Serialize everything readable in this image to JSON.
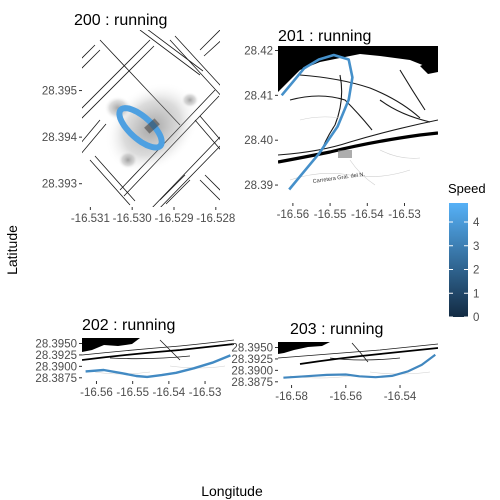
{
  "chart_data": {
    "type": "map-facets",
    "xlabel": "Longitude",
    "ylabel": "Latitude",
    "legend": {
      "title": "Speed",
      "ticks": [
        "4",
        "3",
        "2",
        "1",
        "0"
      ],
      "range": [
        0,
        4.8
      ],
      "colors": {
        "low": "#132B43",
        "high": "#56B1F7"
      },
      "placement": "right"
    },
    "panels": [
      {
        "id": "200",
        "title": "200 : running",
        "xlim": [
          -16.5312,
          -16.5279
        ],
        "ylim": [
          28.3925,
          28.3963
        ],
        "xticks": [
          -16.531,
          -16.53,
          -16.529,
          -16.528
        ],
        "xtick_labels": [
          "-16.531",
          "-16.530",
          "-16.529",
          "-16.528"
        ],
        "yticks": [
          28.393,
          28.394,
          28.395
        ],
        "ytick_labels": [
          "28.393",
          "28.394",
          "28.395"
        ],
        "track": {
          "shape": "oval",
          "center": [
            -16.5298,
            28.3942
          ],
          "semi_major_deg": 0.00064,
          "semi_minor_deg": 0.00026,
          "rotation_deg": -42,
          "speed": 4.2
        }
      },
      {
        "id": "201",
        "title": "201 : running",
        "xlim": [
          -16.564,
          -16.521
        ],
        "ylim": [
          28.386,
          28.421
        ],
        "xticks": [
          -16.56,
          -16.55,
          -16.54,
          -16.53
        ],
        "xtick_labels": [
          "-16.56",
          "-16.55",
          "-16.54",
          "-16.53"
        ],
        "yticks": [
          28.39,
          28.4,
          28.41,
          28.42
        ],
        "ytick_labels": [
          "28.39",
          "28.40",
          "28.41",
          "28.42"
        ],
        "road_label": "Carretera Gral. del N.",
        "track": {
          "shape": "path",
          "lon": [
            -16.561,
            -16.558,
            -16.553,
            -16.548,
            -16.545,
            -16.544,
            -16.545,
            -16.549,
            -16.553,
            -16.557,
            -16.56,
            -16.563
          ],
          "lat": [
            28.389,
            28.392,
            28.397,
            28.403,
            28.409,
            28.414,
            28.418,
            28.419,
            28.418,
            28.416,
            28.413,
            28.41
          ],
          "speed": 3.6
        }
      },
      {
        "id": "202",
        "title": "202 : running",
        "xlim": [
          -16.564,
          -16.522
        ],
        "ylim": [
          28.3868,
          28.3962
        ],
        "xticks": [
          -16.56,
          -16.55,
          -16.54,
          -16.53
        ],
        "xtick_labels": [
          "-16.56",
          "-16.55",
          "-16.54",
          "-16.53"
        ],
        "yticks": [
          28.3875,
          28.39,
          28.3925,
          28.395
        ],
        "ytick_labels": [
          "28.3875",
          "28.3900",
          "28.3925",
          "28.3950"
        ],
        "track": {
          "shape": "path",
          "lon": [
            -16.563,
            -16.558,
            -16.553,
            -16.549,
            -16.546,
            -16.542,
            -16.538,
            -16.533,
            -16.528,
            -16.523
          ],
          "lat": [
            28.3889,
            28.3892,
            28.3885,
            28.3879,
            28.3877,
            28.3881,
            28.3886,
            28.3896,
            28.3908,
            28.3924
          ],
          "speed": 3.4
        }
      },
      {
        "id": "203",
        "title": "203 : running",
        "xlim": [
          -16.585,
          -16.526
        ],
        "ylim": [
          28.3868,
          28.3962
        ],
        "xticks": [
          -16.58,
          -16.56,
          -16.54
        ],
        "xtick_labels": [
          "-16.58",
          "-16.56",
          "-16.54"
        ],
        "yticks": [
          28.3875,
          28.39,
          28.3925,
          28.395
        ],
        "ytick_labels": [
          "28.3875",
          "28.3900",
          "28.3925",
          "28.3950"
        ],
        "track": {
          "shape": "path",
          "lon": [
            -16.583,
            -16.575,
            -16.567,
            -16.56,
            -16.555,
            -16.549,
            -16.543,
            -16.537,
            -16.532,
            -16.527
          ],
          "lat": [
            28.3884,
            28.3887,
            28.389,
            28.3891,
            28.3887,
            28.3885,
            28.3888,
            28.3898,
            28.3912,
            28.3934
          ],
          "speed": 3.3
        }
      }
    ]
  }
}
